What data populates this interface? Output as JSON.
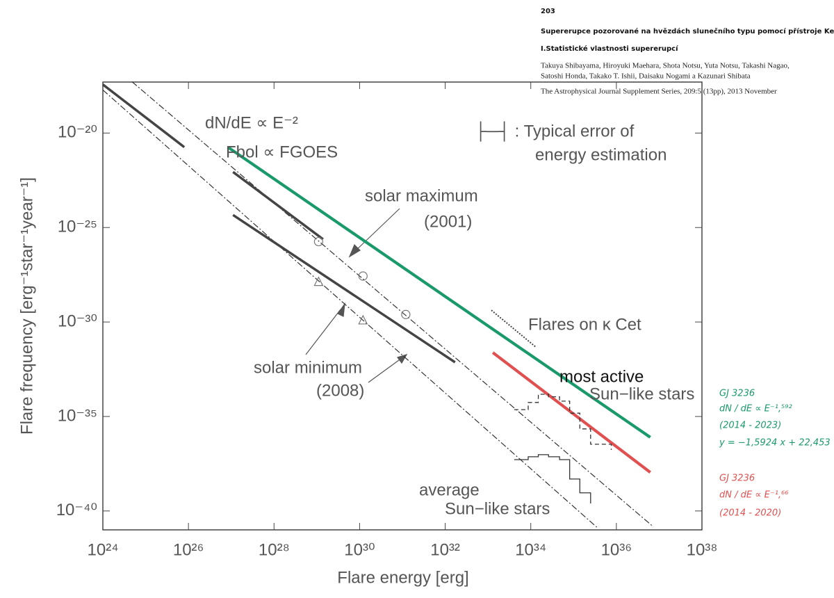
{
  "header": {
    "number": "203",
    "title": "Supererupce pozorované na hvězdách slunečního typu pomocí přístroje Kepler",
    "subtitle": "I.Statistické vlastnosti supererupcí",
    "authors": [
      "Takuya Shibayama, Hiroyuki Maehara, Shota Notsu, Yuta Notsu, Takashi Nagao,",
      "Satoshi Honda, Takako T. Ishii, Daisaku Nogami a Kazunari Shibata"
    ],
    "journal": "The Astrophysical Journal Supplement Series, 209:5 (13pp), 2013 November"
  },
  "notes": {
    "green": [
      "GJ 3236",
      "dN / dE ∝ E⁻¹,⁵⁹²",
      "(2014 - 2023)",
      "y = −1,5924 x + 22,453"
    ],
    "red": [
      "GJ 3236",
      "dN / dE ∝ E⁻¹,⁶⁶",
      "(2014 - 2020)"
    ]
  },
  "chart_data": {
    "type": "line",
    "xlabel": "Flare energy [erg]",
    "ylabel": "Flare frequency [erg⁻¹star⁻¹year⁻¹]",
    "log_x": true,
    "log_y": true,
    "xlim": [
      1e+24,
      1e+38
    ],
    "xticks": [
      {
        "value": 1e+24,
        "label": "10²⁴"
      },
      {
        "value": 1e+26,
        "label": "10²⁶"
      },
      {
        "value": 1e+28,
        "label": "10²⁸"
      },
      {
        "value": 1e+30,
        "label": "10³⁰"
      },
      {
        "value": 1e+32,
        "label": "10³²"
      },
      {
        "value": 1e+34,
        "label": "10³⁴"
      },
      {
        "value": 1e+36,
        "label": "10³⁶"
      },
      {
        "value": 1e+38,
        "label": "10³⁸"
      }
    ],
    "ylim": [
      1e-41,
      5e-18
    ],
    "yticks": [
      {
        "value": 1e-20,
        "label": "10⁻²⁰"
      },
      {
        "value": 1e-25,
        "label": "10⁻²⁵"
      },
      {
        "value": 1e-30,
        "label": "10⁻³⁰"
      },
      {
        "value": 1e-35,
        "label": "10⁻³⁵"
      },
      {
        "value": 1e-40,
        "label": "10⁻⁴⁰"
      }
    ],
    "annotations": [
      "dN/dE ∝ E⁻²",
      "Fbol ∝ FGOES",
      "├─┤ : Typical error of",
      "energy estimation",
      "solar maximum",
      "(2001)",
      "Flares on κ Cet",
      "solar minimum",
      "(2008)",
      "most active",
      "Sun−like stars",
      "average",
      "Sun−like stars"
    ],
    "series": [
      {
        "color": "#333333",
        "style": "dashdot",
        "x": [
          4.8e+24,
          7.2e+36
        ],
        "values": [
          5.2e-18,
          1.5e-41
        ]
      },
      {
        "color": "#333333",
        "style": "dashdot",
        "x": [
          1e+24,
          3.6e+35
        ],
        "values": [
          1.9e-18,
          1.3e-41
        ]
      },
      {
        "color": "#444444",
        "style": "solid",
        "x": [
          1e+24,
          8e+25
        ],
        "values": [
          3.7e-18,
          1.8e-21
        ]
      },
      {
        "color": "#444444",
        "style": "solid",
        "x": [
          1.1e+27,
          1.4e+29
        ],
        "values": [
          8.7e-23,
          2.4e-26
        ]
      },
      {
        "color": "#444444",
        "style": "solid",
        "x": [
          1.1e+27,
          1.7e+32
        ],
        "values": [
          4.6e-25,
          7.4e-33
        ]
      },
      {
        "color": "#1a9a6b",
        "style": "solid",
        "x": [
          8.3e+26,
          6.2e+36
        ],
        "values": [
          1.8e-21,
          7.9e-37
        ]
      },
      {
        "color": "#e05050",
        "style": "solid",
        "x": [
          1.3e+33,
          6.2e+36
        ],
        "values": [
          2.4e-32,
          1.1e-38
        ]
      },
      {
        "color": "#444444",
        "style": "dotted",
        "x": [
          1.2e+33,
          1.3e+34
        ],
        "values": [
          4.2e-30,
          4.8e-32
        ]
      },
      {
        "color": "#777777",
        "style": "none",
        "marker": "circle",
        "x": [
          1.1e+29,
          1.2e+30,
          1.2e+31
        ],
        "values": [
          1.8e-26,
          2.7e-28,
          2.5e-30
        ]
      },
      {
        "color": "#777777",
        "style": "none",
        "marker": "triangle",
        "x": [
          1.1e+29,
          1.2e+30
        ],
        "values": [
          1.3e-28,
          1.2e-30
        ]
      },
      {
        "color": "#333333",
        "style": "dashed",
        "step": true,
        "x": [
          4.1e+33,
          8.7e+33,
          1.5e+34,
          2.6e+34,
          4.7e+34,
          8.1e+34,
          1.4e+35,
          2.5e+35,
          4.4e+35,
          7.6e+35
        ],
        "values": [
          2.3e-35,
          5.5e-35,
          1.5e-34,
          1.1e-34,
          6.5e-35,
          1.5e-35,
          2.2e-36,
          3.4e-37,
          3.4e-37,
          1.7e-37
        ]
      },
      {
        "color": "#333333",
        "style": "solid",
        "step": true,
        "x": [
          4.1e+33,
          8.7e+33,
          1.5e+34,
          2.6e+34,
          4.7e+34,
          8.1e+34,
          1.4e+35,
          2.5e+35
        ],
        "values": [
          5.2e-38,
          7.4e-38,
          9.5e-38,
          7.4e-38,
          5.2e-38,
          4.9e-39,
          9.1e-40,
          2.5e-40
        ]
      }
    ]
  }
}
